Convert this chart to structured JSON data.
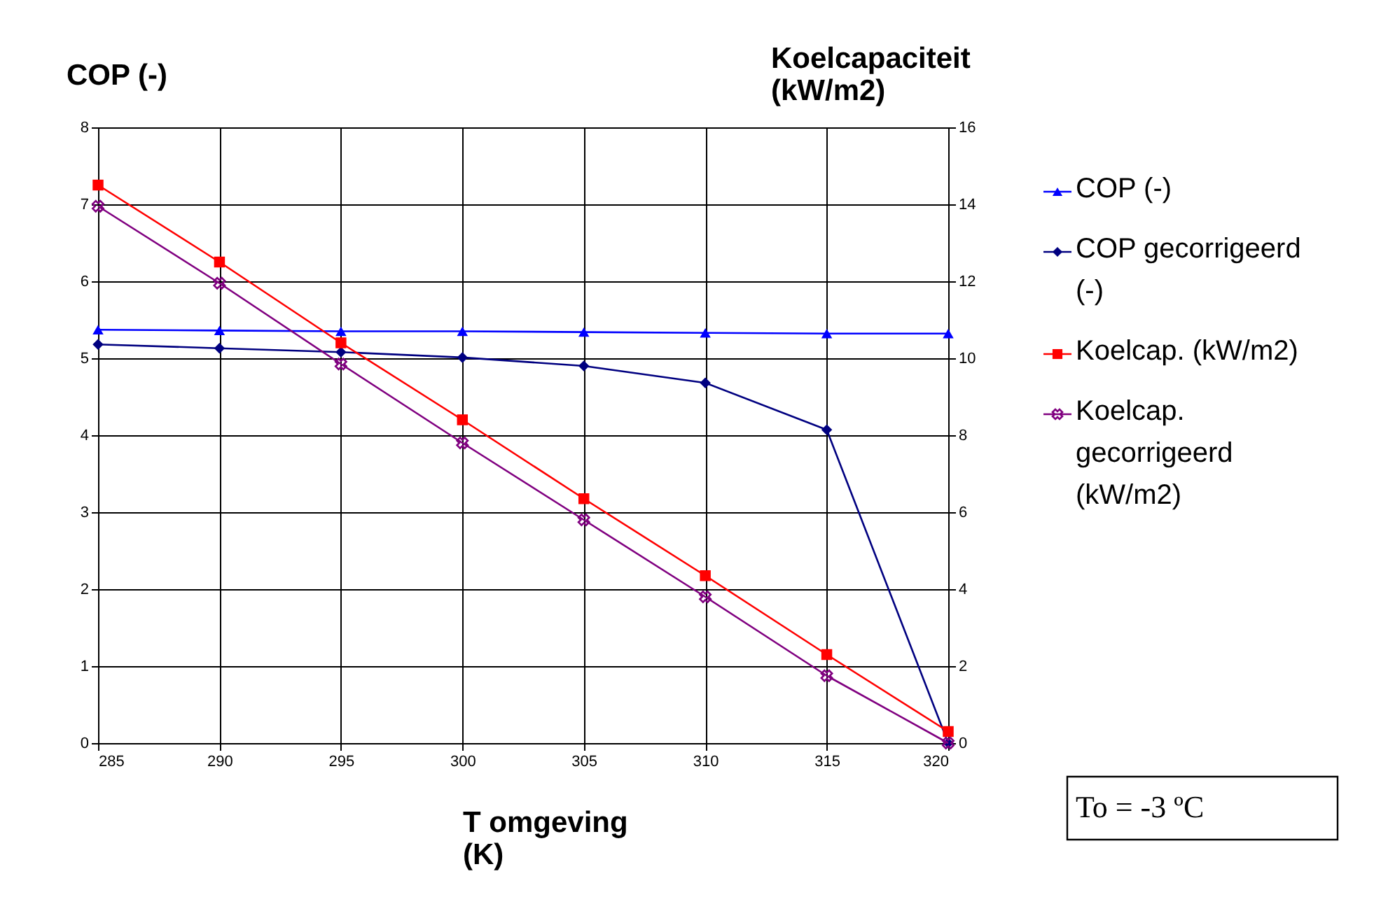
{
  "chart_data": {
    "type": "line",
    "ylabel": "COP (-)",
    "y2label": "Koelcapaciteit (kW/m2)",
    "xlabel": "T omgeving (K)",
    "x": [
      285,
      290,
      295,
      300,
      305,
      310,
      315,
      320
    ],
    "xlim": [
      285,
      320
    ],
    "xticks": [
      285,
      290,
      295,
      300,
      305,
      310,
      315,
      320
    ],
    "ylim": [
      0,
      8
    ],
    "yticks": [
      0,
      1,
      2,
      3,
      4,
      5,
      6,
      7,
      8
    ],
    "y2lim": [
      0,
      16
    ],
    "y2ticks": [
      0,
      2,
      4,
      6,
      8,
      10,
      12,
      14,
      16
    ],
    "grid": true,
    "legend": "right",
    "series": [
      {
        "name": "COP (-)",
        "color": "#0000ff",
        "marker": "triangle",
        "values": [
          5.37,
          5.36,
          5.35,
          5.35,
          5.34,
          5.33,
          5.32,
          5.32
        ]
      },
      {
        "name": "COP gecorrigeerd (-)",
        "color": "#000080",
        "marker": "diamond",
        "values": [
          5.18,
          5.13,
          5.08,
          5.01,
          4.9,
          4.68,
          4.07,
          0
        ]
      },
      {
        "name": "Koelcap. (kW/m2)",
        "color": "#ff0000",
        "marker": "square",
        "axis": "y2",
        "values": [
          14.5,
          12.5,
          10.4,
          8.4,
          6.35,
          4.35,
          2.3,
          0.3
        ]
      },
      {
        "name": "Koelcap. gecorrigeerd (kW/m2)",
        "color": "#800080",
        "marker": "cross",
        "axis": "y2",
        "values": [
          13.95,
          11.95,
          9.85,
          7.8,
          5.8,
          3.8,
          1.75,
          0
        ]
      }
    ],
    "annotations": [
      "To = -3 ºC"
    ]
  }
}
